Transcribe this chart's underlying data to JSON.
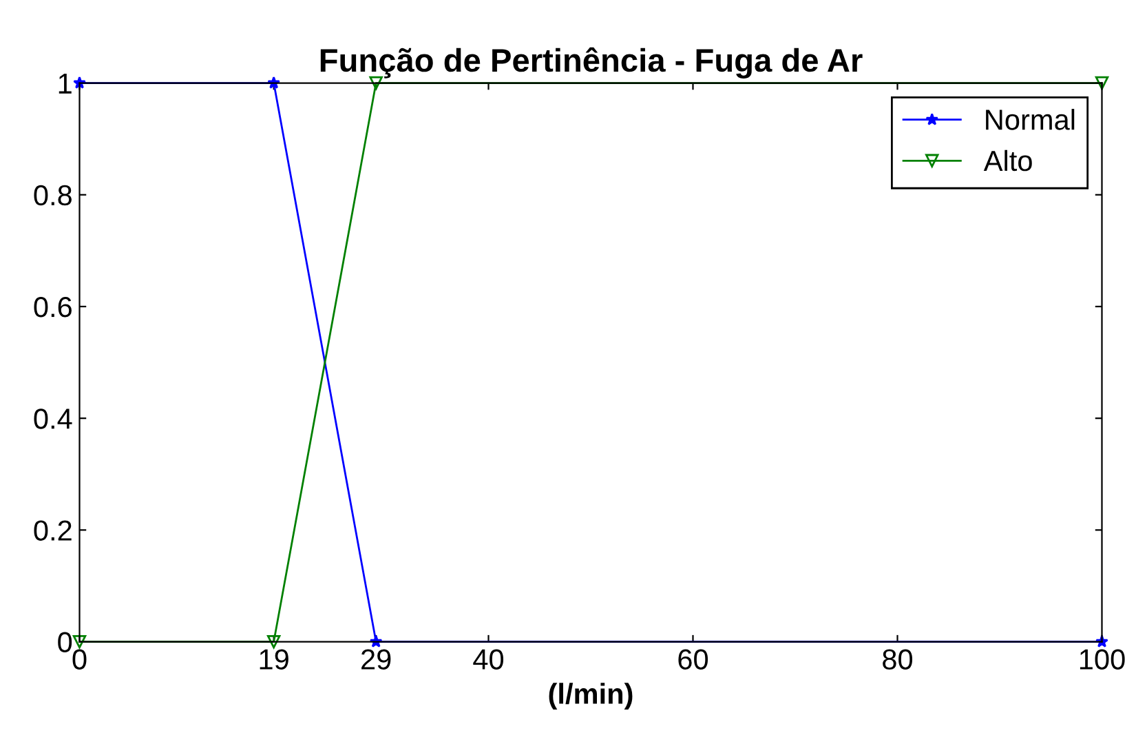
{
  "chart_data": {
    "type": "line",
    "title": "Função de Pertinência - Fuga de Ar",
    "xlabel": "(l/min)",
    "series": [
      {
        "name": "Normal",
        "color": "#0000ff",
        "marker": "star",
        "x": [
          0,
          19,
          29,
          100
        ],
        "values": [
          1,
          1,
          0,
          0
        ]
      },
      {
        "name": "Alto",
        "color": "#008000",
        "marker": "triangle",
        "x": [
          0,
          19,
          29,
          100
        ],
        "values": [
          0,
          0,
          1,
          1
        ]
      }
    ],
    "xlim": [
      0,
      100
    ],
    "ylim": [
      0,
      1
    ],
    "xticks": [
      0,
      19,
      29,
      40,
      60,
      80,
      100
    ],
    "yticks": [
      0,
      0.2,
      0.4,
      0.6,
      0.8,
      1
    ],
    "grid": false,
    "legend": "top right",
    "line_style": "solid"
  }
}
